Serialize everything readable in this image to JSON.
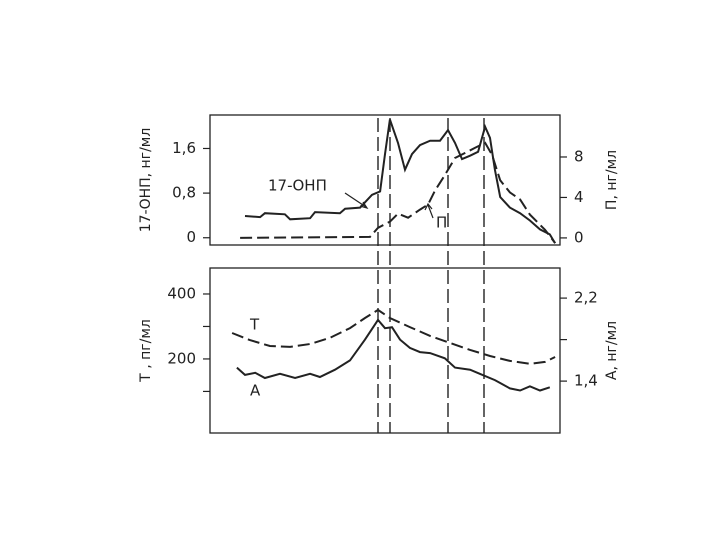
{
  "chart_data": [
    {
      "type": "line",
      "y_label": "17-ОНП, нг/мл",
      "y2_label": "П, нг/мл",
      "xlim": [
        0,
        100
      ],
      "ylim": [
        -0.13,
        2.2
      ],
      "yticks": [
        0,
        {
          "value": 0.8,
          "label": "0,8"
        },
        {
          "value": 1.6,
          "label": "1,6"
        }
      ],
      "y2lim": [
        -0.7,
        12.15
      ],
      "y2ticks": [
        0,
        4,
        8
      ],
      "series": [
        {
          "name": "17-ОНП",
          "color": "#222",
          "style": "solid",
          "x": [
            10,
            14.3,
            15.7,
            21.4,
            22.9,
            28.6,
            30,
            37.1,
            38.6,
            42.9,
            45.1,
            46.3,
            48.6,
            50,
            51.4,
            53.7,
            55.7,
            57.7,
            60,
            62.9,
            65.7,
            68,
            70,
            72,
            74.3,
            76.6,
            78.6,
            80,
            81.4,
            82.9,
            85.7,
            88.6,
            91.4,
            94.3,
            97.1,
            98.6
          ],
          "values": [
            0.39,
            0.37,
            0.44,
            0.42,
            0.33,
            0.35,
            0.46,
            0.44,
            0.52,
            0.54,
            0.69,
            0.77,
            0.83,
            1.5,
            2.12,
            1.7,
            1.22,
            1.5,
            1.66,
            1.74,
            1.74,
            1.93,
            1.7,
            1.41,
            1.47,
            1.54,
            1.99,
            1.79,
            1.22,
            0.73,
            0.54,
            0.44,
            0.31,
            0.15,
            0.06,
            -0.1
          ]
        },
        {
          "name": "П",
          "color": "#222",
          "style": "dashed",
          "axis": "y2",
          "x": [
            8.6,
            45.7,
            48,
            51.4,
            53.7,
            56.6,
            60,
            62.3,
            64.3,
            67.1,
            70,
            72.9,
            75.7,
            78.6,
            80.6,
            82.9,
            85.7,
            88.6,
            91.4,
            95.7,
            98.6
          ],
          "values": [
            0,
            0.1,
            1.0,
            1.6,
            2.4,
            2.0,
            2.8,
            3.3,
            4.7,
            6.2,
            7.9,
            8.4,
            8.9,
            9.4,
            8.2,
            5.7,
            4.5,
            3.8,
            2.3,
            0.8,
            -0.5
          ]
        }
      ]
    },
    {
      "type": "line",
      "y_label": "Т , пг/мл",
      "y2_label": "А, нг/мл",
      "xlim": [
        0,
        100
      ],
      "ylim": [
        -28,
        480
      ],
      "yticks": [
        200,
        400
      ],
      "yminor": [
        100,
        300
      ],
      "y2lim": [
        0.9,
        2.49
      ],
      "y2ticks": [
        {
          "value": 1.4,
          "label": "1,4"
        },
        {
          "value": 2.2,
          "label": "2,2"
        }
      ],
      "y2minor": [
        1.8
      ],
      "series": [
        {
          "name": "Т",
          "color": "#222",
          "style": "dashed",
          "x": [
            6.3,
            11.4,
            17.1,
            22.9,
            28.6,
            34.3,
            40,
            44.3,
            48,
            51.4,
            57.1,
            62.9,
            68.6,
            74.3,
            80,
            85.7,
            91.4,
            95.7,
            98.6
          ],
          "values": [
            280,
            258,
            240,
            237,
            246,
            265,
            295,
            326,
            351,
            326,
            298,
            271,
            249,
            228,
            209,
            194,
            185,
            191,
            206
          ]
        },
        {
          "name": "А",
          "color": "#222",
          "style": "solid",
          "axis": "y2",
          "x": [
            7.7,
            10,
            12.9,
            15.7,
            20,
            24.3,
            28.6,
            31.4,
            35.7,
            40,
            44.3,
            48,
            50,
            52,
            54.3,
            57.1,
            60,
            62.9,
            67.1,
            70,
            74.3,
            77.1,
            81.4,
            85.7,
            88.6,
            91.4,
            94.3,
            97.1
          ],
          "values": [
            1.53,
            1.46,
            1.48,
            1.43,
            1.47,
            1.43,
            1.47,
            1.44,
            1.51,
            1.6,
            1.8,
            1.99,
            1.91,
            1.92,
            1.8,
            1.72,
            1.68,
            1.67,
            1.62,
            1.53,
            1.51,
            1.47,
            1.41,
            1.33,
            1.31,
            1.35,
            1.31,
            1.34
          ]
        }
      ]
    }
  ]
}
